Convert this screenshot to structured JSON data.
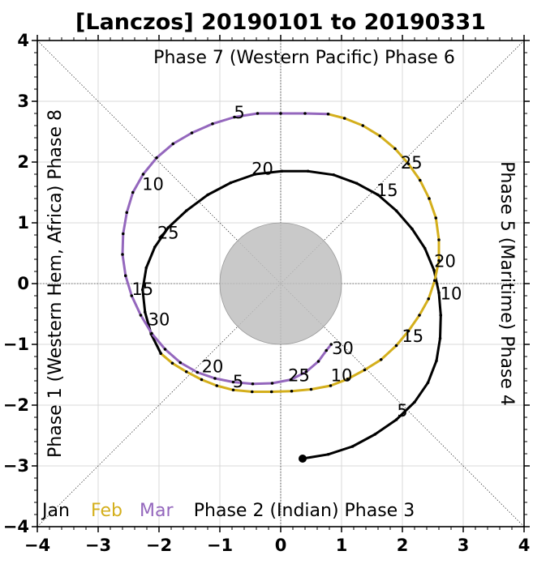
{
  "chart_data": {
    "type": "line",
    "title": "[Lanczos] 20190101 to 20190331",
    "xlim": [
      -4,
      4
    ],
    "ylim": [
      -4,
      4
    ],
    "xticks": [
      -4,
      -3,
      -2,
      -1,
      0,
      1,
      2,
      3,
      4
    ],
    "yticks": [
      -4,
      -3,
      -2,
      -1,
      0,
      1,
      2,
      3,
      4
    ],
    "tick_labels": [
      "−4",
      "−3",
      "−2",
      "−1",
      "0",
      "1",
      "2",
      "3",
      "4"
    ],
    "grid": true,
    "unit_circle_radius": 1,
    "phase_labels": {
      "top": "Phase 7 (Western Pacific) Phase 6",
      "bottom": "Phase 2 (Indian) Phase 3",
      "left": "Phase 1 (Western Hem, Africa) Phase 8",
      "right": "Phase 5 (Maritime) Phase 4"
    },
    "legend": {
      "placement": "bottom-left",
      "entries": [
        {
          "label": "Jan",
          "color": "#000000"
        },
        {
          "label": "Feb",
          "color": "#d4af1c"
        },
        {
          "label": "Mar",
          "color": "#9467bd"
        }
      ]
    },
    "series": [
      {
        "name": "Jan",
        "color": "#000000",
        "start": [
          0.36,
          -2.88
        ],
        "points": [
          [
            0.36,
            -2.88
          ],
          [
            0.78,
            -2.81
          ],
          [
            1.18,
            -2.68
          ],
          [
            1.55,
            -2.48
          ],
          [
            1.9,
            -2.24
          ],
          [
            2.2,
            -1.95
          ],
          [
            2.42,
            -1.63
          ],
          [
            2.56,
            -1.27
          ],
          [
            2.62,
            -0.9
          ],
          [
            2.63,
            -0.52
          ],
          [
            2.6,
            -0.15
          ],
          [
            2.52,
            0.22
          ],
          [
            2.37,
            0.58
          ],
          [
            2.16,
            0.9
          ],
          [
            1.9,
            1.2
          ],
          [
            1.6,
            1.46
          ],
          [
            1.25,
            1.65
          ],
          [
            0.87,
            1.79
          ],
          [
            0.45,
            1.85
          ],
          [
            0.02,
            1.85
          ],
          [
            -0.42,
            1.8
          ],
          [
            -0.82,
            1.66
          ],
          [
            -1.2,
            1.46
          ],
          [
            -1.55,
            1.2
          ],
          [
            -1.85,
            0.92
          ],
          [
            -2.07,
            0.6
          ],
          [
            -2.21,
            0.26
          ],
          [
            -2.27,
            -0.1
          ],
          [
            -2.23,
            -0.47
          ],
          [
            -2.13,
            -0.83
          ],
          [
            -1.97,
            -1.15
          ]
        ],
        "day_labels": [
          {
            "text": "5",
            "at": [
              2.0,
              -2.08
            ]
          },
          {
            "text": "10",
            "at": [
              2.8,
              -0.15
            ]
          },
          {
            "text": "15",
            "at": [
              1.75,
              1.55
            ]
          },
          {
            "text": "20",
            "at": [
              -0.3,
              1.9
            ]
          },
          {
            "text": "25",
            "at": [
              -1.85,
              0.85
            ]
          },
          {
            "text": "30",
            "at": [
              -2.0,
              -0.58
            ]
          }
        ]
      },
      {
        "name": "Feb",
        "color": "#d4af1c",
        "points": [
          [
            -1.97,
            -1.15
          ],
          [
            -1.78,
            -1.31
          ],
          [
            -1.55,
            -1.45
          ],
          [
            -1.3,
            -1.58
          ],
          [
            -1.05,
            -1.68
          ],
          [
            -0.78,
            -1.75
          ],
          [
            -0.47,
            -1.78
          ],
          [
            -0.15,
            -1.78
          ],
          [
            0.18,
            -1.77
          ],
          [
            0.5,
            -1.74
          ],
          [
            0.82,
            -1.68
          ],
          [
            1.1,
            -1.57
          ],
          [
            1.38,
            -1.42
          ],
          [
            1.65,
            -1.25
          ],
          [
            1.9,
            -1.02
          ],
          [
            2.1,
            -0.78
          ],
          [
            2.28,
            -0.52
          ],
          [
            2.43,
            -0.25
          ],
          [
            2.53,
            0.05
          ],
          [
            2.6,
            0.38
          ],
          [
            2.6,
            0.72
          ],
          [
            2.55,
            1.08
          ],
          [
            2.44,
            1.4
          ],
          [
            2.29,
            1.7
          ],
          [
            2.1,
            1.97
          ],
          [
            1.88,
            2.22
          ],
          [
            1.63,
            2.43
          ],
          [
            1.35,
            2.6
          ],
          [
            1.05,
            2.72
          ],
          [
            0.78,
            2.79
          ]
        ],
        "day_labels": [
          {
            "text": "5",
            "at": [
              -0.7,
              -1.6
            ]
          },
          {
            "text": "10",
            "at": [
              1.0,
              -1.5
            ]
          },
          {
            "text": "15",
            "at": [
              2.17,
              -0.85
            ]
          },
          {
            "text": "20",
            "at": [
              2.7,
              0.38
            ]
          },
          {
            "text": "25",
            "at": [
              2.15,
              2.0
            ]
          }
        ]
      },
      {
        "name": "Mar",
        "color": "#9467bd",
        "points": [
          [
            0.78,
            2.79
          ],
          [
            0.4,
            2.8
          ],
          [
            0.0,
            2.8
          ],
          [
            -0.38,
            2.8
          ],
          [
            -0.76,
            2.74
          ],
          [
            -1.12,
            2.63
          ],
          [
            -1.46,
            2.48
          ],
          [
            -1.77,
            2.3
          ],
          [
            -2.04,
            2.07
          ],
          [
            -2.26,
            1.8
          ],
          [
            -2.43,
            1.5
          ],
          [
            -2.53,
            1.17
          ],
          [
            -2.59,
            0.82
          ],
          [
            -2.6,
            0.48
          ],
          [
            -2.55,
            0.13
          ],
          [
            -2.45,
            -0.2
          ],
          [
            -2.3,
            -0.52
          ],
          [
            -2.12,
            -0.82
          ],
          [
            -1.9,
            -1.08
          ],
          [
            -1.65,
            -1.3
          ],
          [
            -1.37,
            -1.46
          ],
          [
            -1.08,
            -1.56
          ],
          [
            -0.78,
            -1.62
          ],
          [
            -0.46,
            -1.65
          ],
          [
            -0.14,
            -1.64
          ],
          [
            0.17,
            -1.58
          ],
          [
            0.42,
            -1.45
          ],
          [
            0.62,
            -1.28
          ],
          [
            0.75,
            -1.1
          ],
          [
            0.83,
            -1.0
          ]
        ],
        "day_labels": [
          {
            "text": "5",
            "at": [
              -0.68,
              2.83
            ]
          },
          {
            "text": "10",
            "at": [
              -2.1,
              1.65
            ]
          },
          {
            "text": "15",
            "at": [
              -2.27,
              -0.08
            ]
          },
          {
            "text": "20",
            "at": [
              -1.12,
              -1.35
            ]
          },
          {
            "text": "25",
            "at": [
              0.3,
              -1.5
            ]
          },
          {
            "text": "30",
            "at": [
              1.02,
              -1.05
            ]
          }
        ]
      }
    ]
  }
}
